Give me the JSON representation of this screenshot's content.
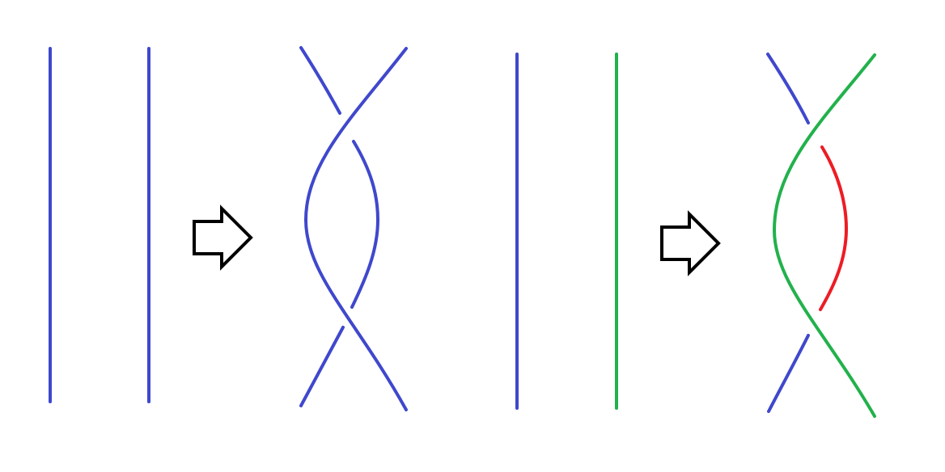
{
  "colors": {
    "blue": "#3f48cc",
    "green": "#22b14c",
    "red": "#ed1c24",
    "arrow_outline": "#000000",
    "background": "#ffffff"
  },
  "icons": {
    "arrow_1": "right-arrow-icon",
    "arrow_2": "right-arrow-icon"
  }
}
